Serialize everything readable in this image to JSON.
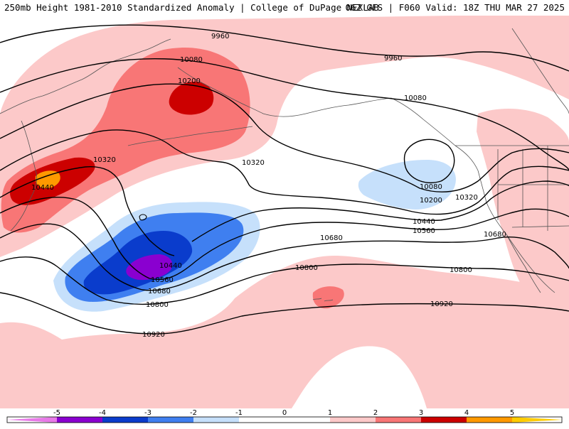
{
  "header": {
    "title_left": "250mb Height 1981-2010 Standardized Anomaly | College of DuPage NEXLAB",
    "title_right": "06Z GFS | F060 Valid: 18Z THU MAR 27 2025"
  },
  "colors": {
    "n5": "#e879e8",
    "n4": "#8a00d0",
    "n3": "#0a3ccc",
    "n2": "#3f7ff0",
    "n1": "#c6e0fb",
    "p1": "#fcc9c9",
    "p2": "#f87676",
    "p3": "#cc0000",
    "p4": "#ff9900",
    "p5": "#ffcc00"
  },
  "contour_labels": [
    {
      "id": "c9960a",
      "text": "9960"
    },
    {
      "id": "c9960b",
      "text": "9960"
    },
    {
      "id": "c10080a",
      "text": "10080"
    },
    {
      "id": "c10080b",
      "text": "10080"
    },
    {
      "id": "c10080c",
      "text": "10080"
    },
    {
      "id": "c10200a",
      "text": "10200"
    },
    {
      "id": "c10200b",
      "text": "10200"
    },
    {
      "id": "c10320a",
      "text": "10320"
    },
    {
      "id": "c10320b",
      "text": "10320"
    },
    {
      "id": "c10320c",
      "text": "10320"
    },
    {
      "id": "c10440a",
      "text": "10440"
    },
    {
      "id": "c10440b",
      "text": "10440"
    },
    {
      "id": "c10440c",
      "text": "10440"
    },
    {
      "id": "c10560a",
      "text": "10560"
    },
    {
      "id": "c10560b",
      "text": "10560"
    },
    {
      "id": "c10680a",
      "text": "10680"
    },
    {
      "id": "c10680b",
      "text": "10680"
    },
    {
      "id": "c10680c",
      "text": "10680"
    },
    {
      "id": "c10800a",
      "text": "10800"
    },
    {
      "id": "c10800b",
      "text": "10800"
    },
    {
      "id": "c10800c",
      "text": "10800"
    },
    {
      "id": "c10920a",
      "text": "10920"
    },
    {
      "id": "c10920b",
      "text": "10920"
    }
  ],
  "colorbar": {
    "ticks": [
      "-5",
      "-4",
      "-3",
      "-2",
      "-1",
      "0",
      "1",
      "2",
      "3",
      "4",
      "5"
    ]
  }
}
